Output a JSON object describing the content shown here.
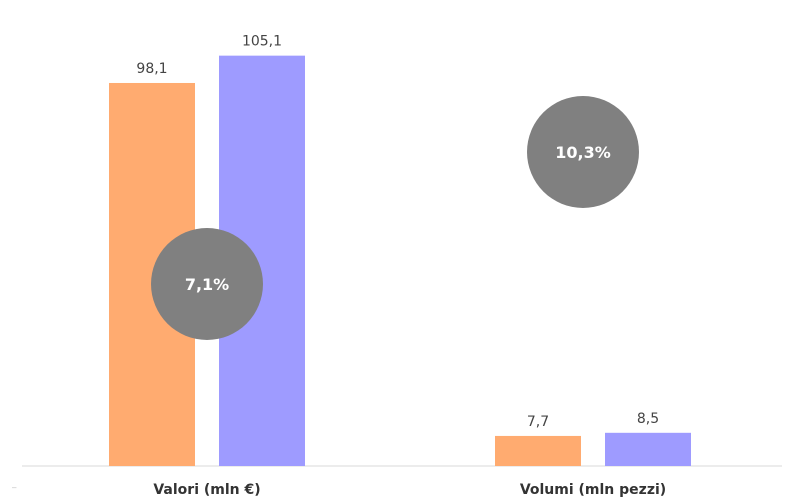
{
  "chart_data": {
    "type": "bar",
    "categories": [
      "Valori (mln €)",
      "Volumi (mln pezzi)"
    ],
    "series": [
      {
        "values": [
          98.1,
          7.7
        ],
        "labels": [
          "98,1",
          "7,7"
        ],
        "color": "#FFAB70"
      },
      {
        "values": [
          105.1,
          8.5
        ],
        "labels": [
          "105,1",
          "8,5"
        ],
        "color": "#9E9BFF"
      }
    ],
    "ylim": [
      0,
      115
    ],
    "grid": false,
    "legend": "none",
    "growth": [
      {
        "category": "Valori (mln €)",
        "label": "7,1%"
      },
      {
        "category": "Volumi (mln pezzi)",
        "label": "10,3%"
      }
    ],
    "bubble_color": "#808080",
    "axis_color": "#D9D9D9"
  }
}
